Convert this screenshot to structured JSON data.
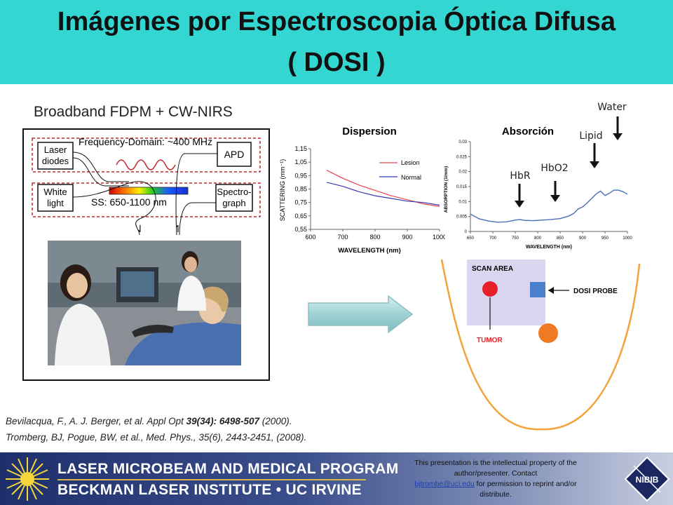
{
  "title": {
    "line1": "Imágenes por Espectroscopia Óptica Difusa",
    "line2": "( DOSI )"
  },
  "diagram": {
    "heading": "Broadband FDPM + CW-NIRS",
    "laser_diodes": [
      "Laser",
      "diodes"
    ],
    "apd": "APD",
    "freq_domain": "Frequency-Domain: ~400 MHz",
    "white_light": [
      "White",
      "light"
    ],
    "spectrograph": [
      "Spectro-",
      "graph"
    ],
    "ss_range": "SS: 650-1100 nm"
  },
  "chart_data": [
    {
      "type": "line",
      "title": "Dispersion",
      "xlabel": "WAVELENGTH (nm)",
      "ylabel": "SCATTERING (mm⁻¹)",
      "xlim": [
        600,
        1000
      ],
      "ylim": [
        0.55,
        1.15
      ],
      "xticks": [
        "600",
        "700",
        "800",
        "900",
        "1000"
      ],
      "yticks": [
        "0,55",
        "0,65",
        "0,75",
        "0,85",
        "0,95",
        "1,05",
        "1,15"
      ],
      "legend_position": "top-right",
      "series": [
        {
          "name": "Lesion",
          "color": "#e8434f",
          "x": [
            650,
            700,
            750,
            800,
            850,
            900,
            950,
            1000
          ],
          "y": [
            0.99,
            0.93,
            0.88,
            0.84,
            0.8,
            0.77,
            0.74,
            0.72
          ]
        },
        {
          "name": "Normal",
          "color": "#3a3ab3",
          "x": [
            650,
            700,
            750,
            800,
            850,
            900,
            950,
            1000
          ],
          "y": [
            0.9,
            0.87,
            0.83,
            0.8,
            0.78,
            0.76,
            0.75,
            0.73
          ]
        }
      ]
    },
    {
      "type": "line",
      "title": "Absorción",
      "xlabel": "WAVELENGTH (nm)",
      "ylabel": "ABSORPTION (1/mm)",
      "xlim": [
        650,
        1000
      ],
      "ylim": [
        0,
        0.03
      ],
      "xticks": [
        "650",
        "700",
        "750",
        "800",
        "850",
        "900",
        "950",
        "1000"
      ],
      "yticks": [
        "0",
        "0.005",
        "0.01",
        "0.015",
        "0.02",
        "0.025",
        "0.03"
      ],
      "series": [
        {
          "color": "#4a6fb5",
          "x": [
            650,
            670,
            690,
            710,
            730,
            750,
            760,
            770,
            790,
            810,
            830,
            850,
            870,
            880,
            890,
            900,
            910,
            920,
            930,
            940,
            950,
            960,
            970,
            980,
            990,
            1000
          ],
          "y": [
            0.0058,
            0.0042,
            0.0035,
            0.0031,
            0.0032,
            0.0038,
            0.004,
            0.0037,
            0.0036,
            0.0038,
            0.004,
            0.0043,
            0.0052,
            0.006,
            0.0075,
            0.0082,
            0.0095,
            0.011,
            0.0125,
            0.0135,
            0.012,
            0.0128,
            0.0138,
            0.0138,
            0.0133,
            0.0125
          ]
        }
      ],
      "annotations": [
        {
          "label": "HbR"
        },
        {
          "label": "HbO2"
        },
        {
          "label": "Lipid"
        },
        {
          "label": "Water"
        }
      ]
    }
  ],
  "scan": {
    "scan_area": "SCAN AREA",
    "probe": "DOSI PROBE",
    "tumor": "TUMOR"
  },
  "references": {
    "ref1_plain": "Bevilacqua, F., A. J. Berger, et al. Appl Opt ",
    "ref1_bold": "39(34): 6498-507",
    "ref1_end": " (2000).",
    "ref2": "Tromberg, BJ, Pogue, BW, et al., Med. Phys., 35(6), 2443-2451, (2008)."
  },
  "footer": {
    "line1": "LASER MICROBEAM AND MEDICAL PROGRAM",
    "line2": "BECKMAN LASER INSTITUTE • UC IRVINE",
    "note_pre": "This presentation is the intellectual property of the author/presenter.  Contact",
    "note_email": "bjtrombe@uci.edu",
    "note_post": "for permission to reprint and/or distribute.",
    "logo": "NIBIB"
  },
  "colors": {
    "title_band": "#33d6d1",
    "orange": "#f07a24",
    "tumor_red": "#e8202a",
    "probe_blue": "#4a7fcc",
    "scan_area": "#dad6f0"
  }
}
